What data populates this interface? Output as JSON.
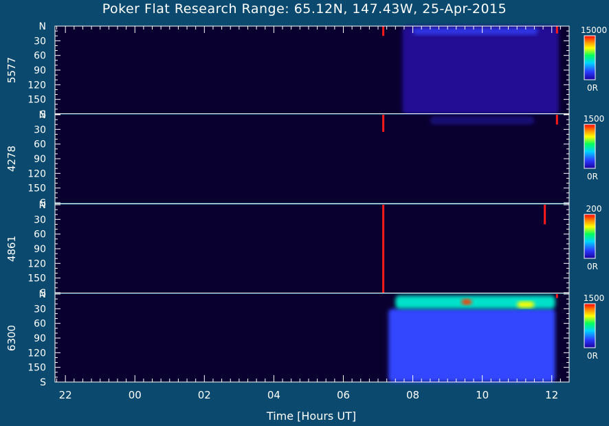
{
  "title": "Poker Flat Research Range: 65.12N, 147.43W, 25-Apr-2015",
  "xlabel": "Time [Hours UT]",
  "chart_data": {
    "type": "heatmap",
    "title": "Poker Flat Research Range: 65.12N, 147.43W, 25-Apr-2015",
    "xlabel": "Time [Hours UT]",
    "x_ticks": [
      "22",
      "00",
      "02",
      "04",
      "06",
      "08",
      "10",
      "12"
    ],
    "x_tick_hours": [
      22,
      24,
      26,
      28,
      30,
      32,
      34,
      36
    ],
    "xlim_hours": [
      21.7,
      36.5
    ],
    "y_ticks": [
      "N",
      "30",
      "60",
      "90",
      "120",
      "150",
      "S"
    ],
    "y_tick_values": [
      0,
      30,
      60,
      90,
      120,
      150,
      180
    ],
    "ylim": [
      0,
      180
    ],
    "colormap": "rainbow (black-blue-cyan-green-yellow-orange-red)",
    "panels": [
      {
        "wavelength": "5577",
        "scale_max": "15000",
        "scale_min": "0R",
        "emission": [
          {
            "t0": 31.7,
            "t1": 36.2,
            "y0": 0,
            "y1": 180,
            "level": 0.08
          },
          {
            "t0": 32.0,
            "t1": 35.6,
            "y0": 3,
            "y1": 18,
            "level": 0.2
          }
        ],
        "saturated": [
          {
            "t": 31.15,
            "y0": 0,
            "y1": 20
          },
          {
            "t": 36.15,
            "y0": 0,
            "y1": 15
          }
        ]
      },
      {
        "wavelength": "4278",
        "scale_max": "1500",
        "scale_min": "0R",
        "emission": [
          {
            "t0": 32.5,
            "t1": 35.5,
            "y0": 3,
            "y1": 20,
            "level": 0.05
          }
        ],
        "saturated": [
          {
            "t": 31.15,
            "y0": 0,
            "y1": 35
          },
          {
            "t": 36.15,
            "y0": 0,
            "y1": 20
          }
        ]
      },
      {
        "wavelength": "4861",
        "scale_max": "200",
        "scale_min": "0R",
        "emission": [],
        "saturated": [
          {
            "t": 31.15,
            "y0": 0,
            "y1": 180
          },
          {
            "t": 35.8,
            "y0": 0,
            "y1": 40
          }
        ]
      },
      {
        "wavelength": "6300",
        "scale_max": "1500",
        "scale_min": "0R",
        "emission": [
          {
            "t0": 31.3,
            "t1": 36.1,
            "y0": 30,
            "y1": 180,
            "level": 0.25
          },
          {
            "t0": 31.5,
            "t1": 36.1,
            "y0": 3,
            "y1": 30,
            "level": 0.5
          },
          {
            "t0": 33.4,
            "t1": 33.7,
            "y0": 10,
            "y1": 22,
            "level": 0.95
          },
          {
            "t0": 35.0,
            "t1": 35.5,
            "y0": 15,
            "y1": 28,
            "level": 0.75
          }
        ],
        "saturated": [
          {
            "t": 36.15,
            "y0": 0,
            "y1": 8
          }
        ]
      }
    ]
  }
}
